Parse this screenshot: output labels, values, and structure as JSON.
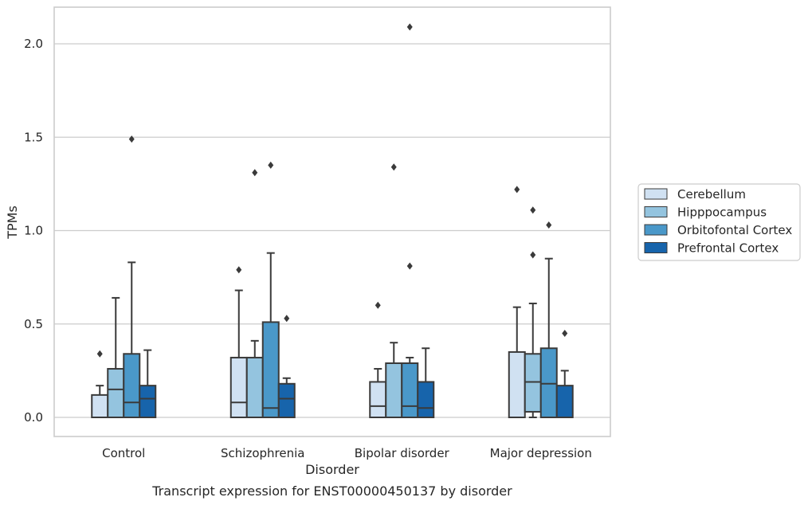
{
  "chart_data": {
    "type": "boxplot",
    "caption": "Transcript expression for ENST00000450137 by disorder",
    "xlabel": "Disorder",
    "ylabel": "TPMs",
    "ylim": [
      -0.1,
      2.2
    ],
    "yticks": [
      0.0,
      0.5,
      1.0,
      1.5,
      2.0
    ],
    "ytick_labels": [
      "0.0",
      "0.5",
      "1.0",
      "1.5",
      "2.0"
    ],
    "grid": "horizontal",
    "legend_position": "right",
    "categories": [
      "Control",
      "Schizophrenia",
      "Bipolar disorder",
      "Major depression"
    ],
    "colors": {
      "Cerebellum": "#d0e1f2",
      "Hipppocampus": "#94c4df",
      "Orbitofontal Cortex": "#4a98c9",
      "Prefrontal Cortex": "#1764ab",
      "box_edge": "#3a3a3a",
      "grid": "#cccccc",
      "frame": "#cccccc"
    },
    "series": [
      {
        "name": "Cerebellum",
        "boxes": [
          {
            "q1": 0.0,
            "median": 0.0,
            "q3": 0.12,
            "whislo": 0.0,
            "whishi": 0.17,
            "fliers": [
              0.34
            ]
          },
          {
            "q1": 0.0,
            "median": 0.08,
            "q3": 0.32,
            "whislo": 0.0,
            "whishi": 0.68,
            "fliers": [
              0.79
            ]
          },
          {
            "q1": 0.0,
            "median": 0.06,
            "q3": 0.19,
            "whislo": 0.0,
            "whishi": 0.26,
            "fliers": [
              0.6
            ]
          },
          {
            "q1": 0.0,
            "median": 0.0,
            "q3": 0.35,
            "whislo": 0.0,
            "whishi": 0.59,
            "fliers": [
              1.22
            ]
          }
        ]
      },
      {
        "name": "Hipppocampus",
        "boxes": [
          {
            "q1": 0.0,
            "median": 0.15,
            "q3": 0.26,
            "whislo": 0.0,
            "whishi": 0.64,
            "fliers": []
          },
          {
            "q1": 0.0,
            "median": 0.0,
            "q3": 0.32,
            "whislo": 0.0,
            "whishi": 0.41,
            "fliers": [
              1.31
            ]
          },
          {
            "q1": 0.0,
            "median": 0.0,
            "q3": 0.29,
            "whislo": 0.0,
            "whishi": 0.4,
            "fliers": [
              1.34
            ]
          },
          {
            "q1": 0.03,
            "median": 0.19,
            "q3": 0.34,
            "whislo": 0.0,
            "whishi": 0.61,
            "fliers": [
              0.87,
              1.11
            ]
          }
        ]
      },
      {
        "name": "Orbitofontal Cortex",
        "boxes": [
          {
            "q1": 0.0,
            "median": 0.08,
            "q3": 0.34,
            "whislo": 0.0,
            "whishi": 0.83,
            "fliers": [
              1.49
            ]
          },
          {
            "q1": 0.0,
            "median": 0.05,
            "q3": 0.51,
            "whislo": 0.0,
            "whishi": 0.88,
            "fliers": [
              1.35
            ]
          },
          {
            "q1": 0.0,
            "median": 0.06,
            "q3": 0.29,
            "whislo": 0.0,
            "whishi": 0.32,
            "fliers": [
              0.81,
              2.09
            ]
          },
          {
            "q1": 0.0,
            "median": 0.18,
            "q3": 0.37,
            "whislo": 0.0,
            "whishi": 0.85,
            "fliers": [
              1.03
            ]
          }
        ]
      },
      {
        "name": "Prefrontal Cortex",
        "boxes": [
          {
            "q1": 0.0,
            "median": 0.1,
            "q3": 0.17,
            "whislo": 0.0,
            "whishi": 0.36,
            "fliers": []
          },
          {
            "q1": 0.0,
            "median": 0.1,
            "q3": 0.18,
            "whislo": 0.0,
            "whishi": 0.21,
            "fliers": [
              0.53
            ]
          },
          {
            "q1": 0.0,
            "median": 0.05,
            "q3": 0.19,
            "whislo": 0.0,
            "whishi": 0.37,
            "fliers": []
          },
          {
            "q1": 0.0,
            "median": 0.0,
            "q3": 0.17,
            "whislo": 0.0,
            "whishi": 0.25,
            "fliers": [
              0.45
            ]
          }
        ]
      }
    ]
  }
}
